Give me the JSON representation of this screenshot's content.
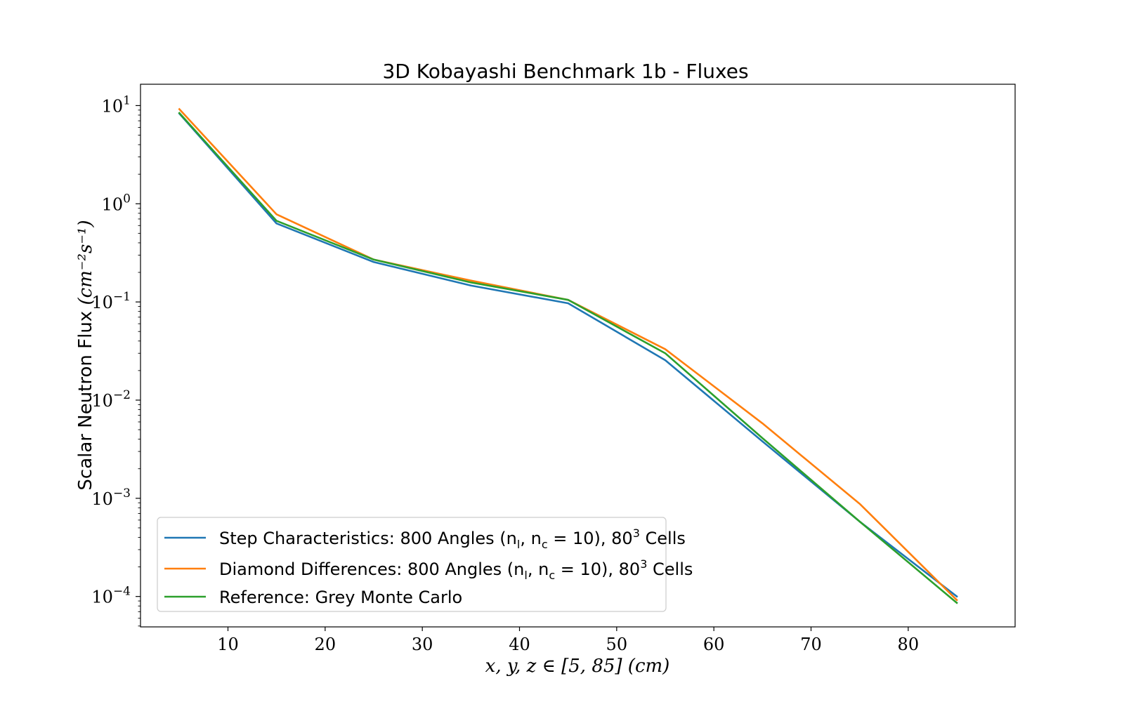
{
  "chart_data": {
    "type": "line",
    "title": "3D Kobayashi Benchmark 1b - Fluxes",
    "xlabel": "x, y, z ∈ [5, 85] (cm)",
    "ylabel": {
      "prefix": "Scalar Neutron Flux ",
      "unit": "(cm⁻²s⁻¹)"
    },
    "x_scale": "linear",
    "y_scale": "log",
    "xlim": [
      1,
      91
    ],
    "ylim": [
      4.9e-05,
      16.5
    ],
    "x_ticks": [
      10,
      20,
      30,
      40,
      50,
      60,
      70,
      80
    ],
    "y_ticks": [
      {
        "value": 10,
        "base": "10",
        "exp": "1"
      },
      {
        "value": 1,
        "base": "10",
        "exp": "0"
      },
      {
        "value": 0.1,
        "base": "10",
        "exp": "−1"
      },
      {
        "value": 0.01,
        "base": "10",
        "exp": "−2"
      },
      {
        "value": 0.001,
        "base": "10",
        "exp": "−3"
      },
      {
        "value": 0.0001,
        "base": "10",
        "exp": "−4"
      }
    ],
    "grid": false,
    "legend_position": "lower-left",
    "x": [
      5,
      15,
      25,
      35,
      45,
      55,
      65,
      75,
      85
    ],
    "series": [
      {
        "name": "step-characteristics",
        "color": "#1f77b4",
        "legend": {
          "pre": "Step Characteristics: ",
          "mid": "800 Angles (n",
          "sub1": "l",
          "mid2": ", n",
          "sub2": "c",
          "mid3": " = 10), 80",
          "sup": "3",
          "post": " Cells"
        },
        "values": [
          8.3,
          0.63,
          0.255,
          0.147,
          0.097,
          0.0255,
          0.0038,
          0.00058,
          0.0001
        ]
      },
      {
        "name": "diamond-differences",
        "color": "#ff7f0e",
        "legend": {
          "pre": "Diamond Differences: ",
          "mid": "800 Angles (n",
          "sub1": "l",
          "mid2": ", n",
          "sub2": "c",
          "mid3": " = 10), 80",
          "sup": "3",
          "post": " Cells"
        },
        "values": [
          9.2,
          0.78,
          0.27,
          0.165,
          0.105,
          0.033,
          0.0058,
          0.00088,
          9.2e-05
        ]
      },
      {
        "name": "reference-grey-monte-carlo",
        "color": "#2ca02c",
        "legend": {
          "pre": "Reference: Grey Monte Carlo",
          "mid": "",
          "sub1": "",
          "mid2": "",
          "sub2": "",
          "mid3": "",
          "sup": "",
          "post": ""
        },
        "values": [
          8.4,
          0.67,
          0.27,
          0.158,
          0.105,
          0.03,
          0.0041,
          0.00058,
          8.6e-05
        ]
      }
    ]
  }
}
